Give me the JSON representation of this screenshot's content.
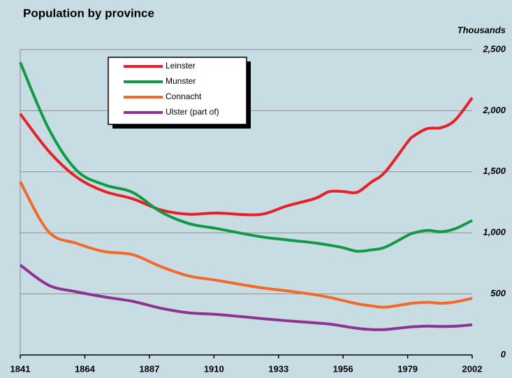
{
  "chart_data": {
    "type": "line",
    "title": "Population by province",
    "y_axis_label": "Thousands",
    "x": [
      1841,
      1851,
      1861,
      1871,
      1881,
      1891,
      1901,
      1911,
      1926,
      1936,
      1946,
      1951,
      1956,
      1961,
      1966,
      1971,
      1979,
      1981,
      1986,
      1991,
      1996,
      2002
    ],
    "series": [
      {
        "name": "Leinster",
        "color": "#e8202a",
        "values": [
          1974,
          1672,
          1457,
          1339,
          1279,
          1188,
          1152,
          1162,
          1149,
          1220,
          1281,
          1337,
          1338,
          1332,
          1414,
          1498,
          1743,
          1790,
          1853,
          1861,
          1925,
          2106
        ]
      },
      {
        "name": "Munster",
        "color": "#109a48",
        "values": [
          2396,
          1858,
          1513,
          1393,
          1331,
          1173,
          1076,
          1035,
          970,
          942,
          917,
          899,
          878,
          849,
          860,
          882,
          979,
          998,
          1020,
          1009,
          1034,
          1101
        ]
      },
      {
        "name": "Connacht",
        "color": "#f26a2a",
        "values": [
          1419,
          1011,
          914,
          846,
          822,
          724,
          647,
          611,
          553,
          525,
          493,
          472,
          446,
          419,
          402,
          391,
          418,
          424,
          431,
          423,
          434,
          464
        ]
      },
      {
        "name": "Ulster (part of)",
        "color": "#8e3391",
        "values": [
          736,
          572,
          517,
          475,
          439,
          383,
          345,
          332,
          300,
          280,
          263,
          253,
          236,
          218,
          208,
          208,
          227,
          231,
          236,
          233,
          235,
          247
        ]
      }
    ],
    "xlim": [
      1841,
      2002
    ],
    "xticks": [
      1841,
      1864,
      1887,
      1910,
      1933,
      1956,
      1979,
      2002
    ],
    "ylim": [
      0,
      2500
    ],
    "yticks": [
      0,
      500,
      {
        "value": 1000,
        "label": "1,000"
      },
      {
        "value": 1500,
        "label": "1,500"
      },
      {
        "value": 2000,
        "label": "2,000"
      },
      {
        "value": 2500,
        "label": "2,500"
      }
    ],
    "grid": true,
    "legend": "top-left"
  }
}
